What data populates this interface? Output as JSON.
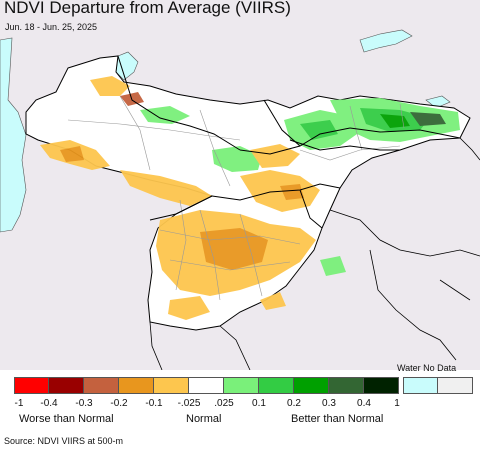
{
  "title": "NDVI Departure from Average (VIIRS)",
  "subtitle": "Jun. 18 - Jun. 25, 2025",
  "legend": {
    "water_no_data_label": "Water No Data",
    "swatches": [
      {
        "color": "#ff0000"
      },
      {
        "color": "#990000"
      },
      {
        "color": "#c4613e"
      },
      {
        "color": "#e8961e"
      },
      {
        "color": "#fdc64e"
      },
      {
        "color": "#ffffff"
      },
      {
        "color": "#7af07a"
      },
      {
        "color": "#33cc44"
      },
      {
        "color": "#00a000"
      },
      {
        "color": "#336633"
      },
      {
        "color": "#002200"
      }
    ],
    "nodata_swatches": [
      {
        "color": "#c9fcfc"
      },
      {
        "color": "#f0f0f0"
      }
    ],
    "tick_labels": [
      "-1",
      "-0.4",
      "-0.3",
      "-0.2",
      "-0.1",
      "-.025",
      ".025",
      "0.1",
      "0.2",
      "0.3",
      "0.4",
      "1"
    ],
    "category_labels": {
      "worse": "Worse than Normal",
      "normal": "Normal",
      "better": "Better than Normal"
    }
  },
  "source": "Source: NDVI VIIRS at 500-m",
  "colors": {
    "land_outside": "#ede9ee",
    "land_inside": "#ffffff",
    "water": "#c9fcfc",
    "border_country": "#000000",
    "border_admin": "#999999"
  }
}
